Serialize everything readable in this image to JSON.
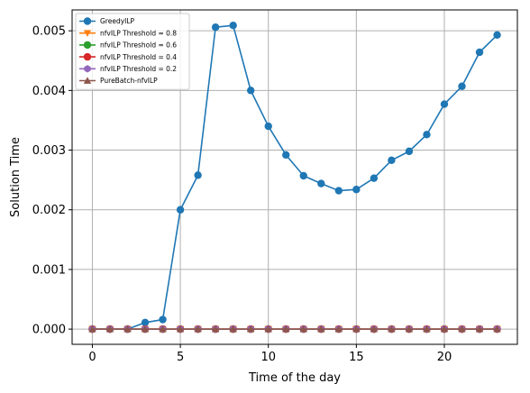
{
  "chart_data": {
    "type": "line",
    "xlabel": "Time of the day",
    "ylabel": "Solution Time",
    "xlim": [
      -1.15,
      24.15
    ],
    "ylim": [
      -0.000255,
      0.00535
    ],
    "xticks": [
      0,
      5,
      10,
      15,
      20
    ],
    "xtick_labels": [
      "0",
      "5",
      "10",
      "15",
      "20"
    ],
    "yticks": [
      0.0,
      0.001,
      0.002,
      0.003,
      0.004,
      0.005
    ],
    "ytick_labels": [
      "0.000",
      "0.001",
      "0.002",
      "0.003",
      "0.004",
      "0.005"
    ],
    "grid": true,
    "legend_position": "top-left",
    "x": [
      0,
      1,
      2,
      3,
      4,
      5,
      6,
      7,
      8,
      9,
      10,
      11,
      12,
      13,
      14,
      15,
      16,
      17,
      18,
      19,
      20,
      21,
      22,
      23
    ],
    "series": [
      {
        "name": "GreedyILP",
        "color": "#1f77b4",
        "marker": "circle",
        "values": [
          0.0,
          0.0,
          0.0,
          0.00011,
          0.00016,
          0.002,
          0.00258,
          0.00506,
          0.00509,
          0.004,
          0.0034,
          0.00292,
          0.00257,
          0.00244,
          0.00232,
          0.00234,
          0.00253,
          0.00283,
          0.00298,
          0.00326,
          0.00377,
          0.00407,
          0.00464,
          0.00493
        ]
      },
      {
        "name": "nfvILP Threshold = 0.8",
        "color": "#ff7f0e",
        "marker": "triangle-down",
        "values": [
          0,
          0,
          0,
          0,
          0,
          0,
          0,
          0,
          0,
          0,
          0,
          0,
          0,
          0,
          0,
          0,
          0,
          0,
          0,
          0,
          0,
          0,
          0,
          0
        ]
      },
      {
        "name": "nfvILP Threshold = 0.6",
        "color": "#2ca02c",
        "marker": "circle",
        "values": [
          0,
          0,
          0,
          0,
          0,
          0,
          0,
          0,
          0,
          0,
          0,
          0,
          0,
          0,
          0,
          0,
          0,
          0,
          0,
          0,
          0,
          0,
          0,
          0
        ]
      },
      {
        "name": "nfvILP Threshold = 0.4",
        "color": "#d62728",
        "marker": "circle",
        "values": [
          0,
          0,
          0,
          0,
          0,
          0,
          0,
          0,
          0,
          0,
          0,
          0,
          0,
          0,
          0,
          0,
          0,
          0,
          0,
          0,
          0,
          0,
          0,
          0
        ]
      },
      {
        "name": "nfvILP Threshold = 0.2",
        "color": "#9467bd",
        "marker": "hexagon",
        "values": [
          0,
          0,
          0,
          0,
          0,
          0,
          0,
          0,
          0,
          0,
          0,
          0,
          0,
          0,
          0,
          0,
          0,
          0,
          0,
          0,
          0,
          0,
          0,
          0
        ]
      },
      {
        "name": "PureBatch-nfvILP",
        "color": "#8c564b",
        "marker": "triangle-up",
        "values": [
          0,
          0,
          0,
          0,
          0,
          0,
          0,
          0,
          0,
          0,
          0,
          0,
          0,
          0,
          0,
          0,
          0,
          0,
          0,
          0,
          0,
          0,
          0,
          0
        ]
      }
    ]
  }
}
